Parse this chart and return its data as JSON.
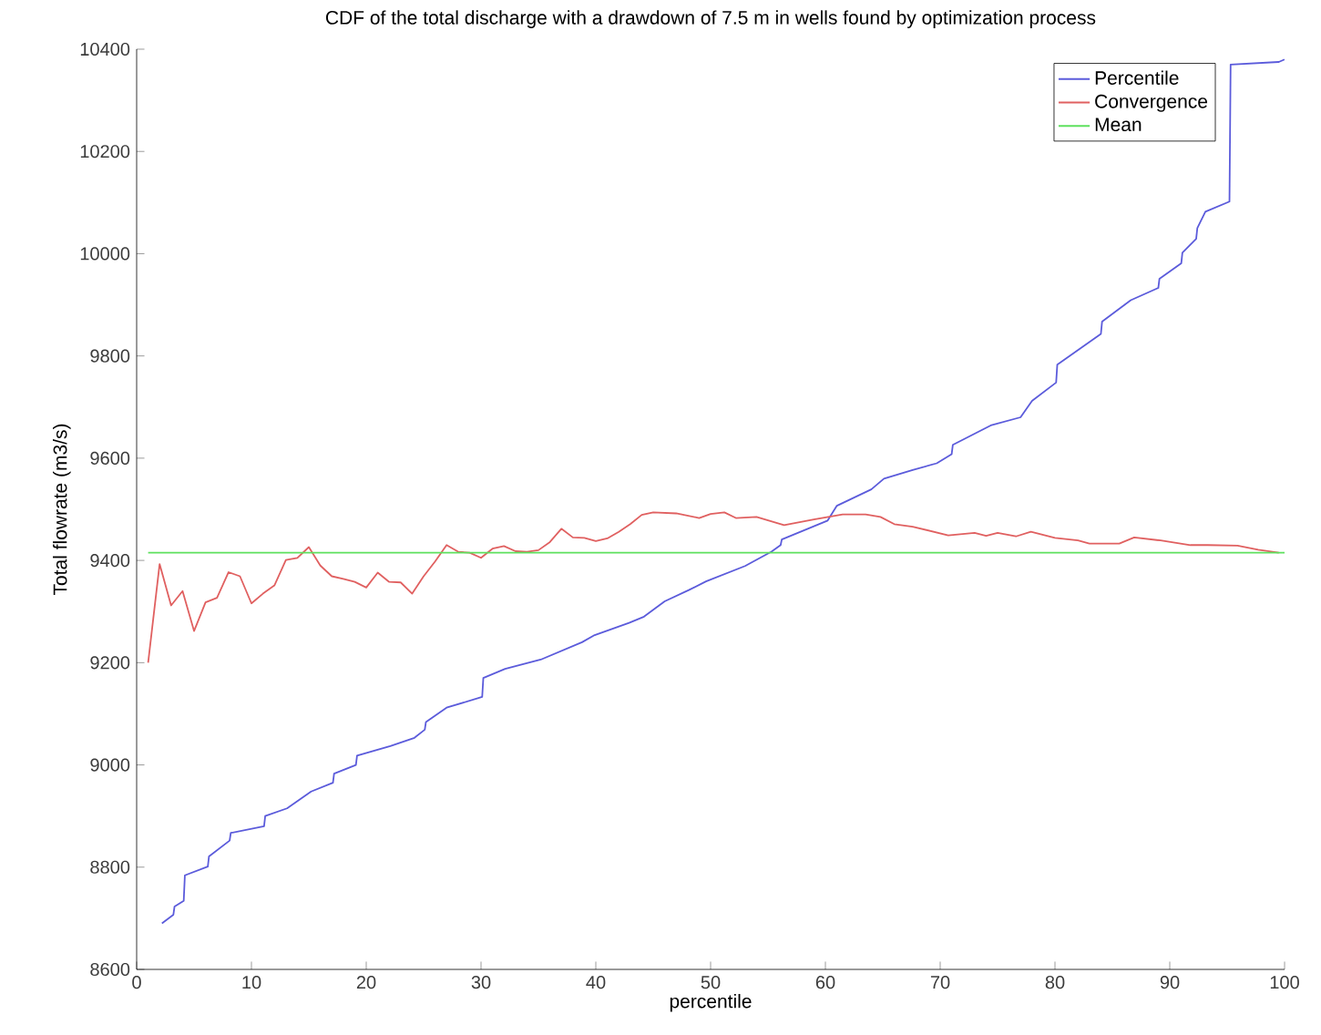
{
  "chart_data": {
    "type": "line",
    "title": "CDF of the total discharge with a drawdown of 7.5 m in wells found by optimization process",
    "xlabel": "percentile",
    "ylabel": "Total flowrate (m3/s)",
    "xlim": [
      0,
      100
    ],
    "ylim": [
      8600,
      10400
    ],
    "xticks": [
      0,
      10,
      20,
      30,
      40,
      50,
      60,
      70,
      80,
      90,
      100
    ],
    "yticks": [
      8600,
      8800,
      9000,
      9200,
      9400,
      9600,
      9800,
      10000,
      10200,
      10400
    ],
    "legend": "top right",
    "series": [
      {
        "name": "Percentile",
        "color": "#5b5bdb",
        "x": [
          2.2,
          3.2,
          3.3,
          4.1,
          4.2,
          6.2,
          6.3,
          8.1,
          8.2,
          11.1,
          11.2,
          13.1,
          15.2,
          17.1,
          17.2,
          19.1,
          19.2,
          22.1,
          24.2,
          25.1,
          25.2,
          27.0,
          30.1,
          30.2,
          32.1,
          35.2,
          38.8,
          39.9,
          42.9,
          44.2,
          46.0,
          48.1,
          49.6,
          53.0,
          55.3,
          56.1,
          56.2,
          60.2,
          61.0,
          64.0,
          65.1,
          67.6,
          69.7,
          71.0,
          71.1,
          74.4,
          77.0,
          78.0,
          80.1,
          80.2,
          84.0,
          84.1,
          86.6,
          89.0,
          89.1,
          91.0,
          91.1,
          92.3,
          92.4,
          93.1,
          95.2,
          95.3,
          99.5,
          100
        ],
        "values": [
          8690,
          8707,
          8723,
          8734,
          8784,
          8801,
          8821,
          8852,
          8867,
          8880,
          8900,
          8915,
          8948,
          8965,
          8983,
          9000,
          9018,
          9037,
          9053,
          9069,
          9084,
          9112,
          9133,
          9170,
          9188,
          9206,
          9240,
          9254,
          9278,
          9290,
          9320,
          9342,
          9359,
          9389,
          9417,
          9430,
          9441,
          9478,
          9507,
          9539,
          9560,
          9577,
          9590,
          9608,
          9626,
          9664,
          9680,
          9712,
          9748,
          9783,
          9843,
          9867,
          9909,
          9933,
          9951,
          9981,
          10002,
          10029,
          10050,
          10082,
          10102,
          10370,
          10375,
          10380
        ]
      },
      {
        "name": "Convergence",
        "color": "#e06060",
        "x": [
          1,
          2,
          3,
          4,
          5,
          6,
          7,
          8,
          9,
          10,
          11,
          12,
          13,
          14,
          15,
          16,
          17,
          18,
          19,
          20,
          21,
          22,
          23,
          24,
          25,
          26,
          27,
          28,
          29,
          30,
          31,
          32,
          33,
          34,
          35,
          36,
          37,
          38,
          39,
          40,
          41,
          42,
          43,
          44,
          45,
          47,
          49,
          50,
          51.2,
          52.2,
          54,
          56.4,
          59,
          61.5,
          63.5,
          64.8,
          66,
          67.6,
          70.7,
          73,
          74,
          75,
          76.6,
          77.9,
          80,
          82,
          83,
          85.6,
          86.9,
          89.2,
          91.8,
          93.3,
          95.9,
          97.7,
          99.5
        ],
        "values": [
          9200,
          9393,
          9312,
          9340,
          9262,
          9318,
          9327,
          9377,
          9369,
          9316,
          9335,
          9351,
          9401,
          9405,
          9426,
          9390,
          9369,
          9364,
          9358,
          9347,
          9376,
          9358,
          9357,
          9335,
          9369,
          9398,
          9430,
          9417,
          9415,
          9405,
          9423,
          9428,
          9418,
          9417,
          9420,
          9436,
          9462,
          9445,
          9444,
          9438,
          9443,
          9456,
          9471,
          9489,
          9494,
          9492,
          9483,
          9491,
          9494,
          9483,
          9485,
          9469,
          9480,
          9490,
          9490,
          9485,
          9471,
          9466,
          9449,
          9454,
          9448,
          9454,
          9447,
          9456,
          9444,
          9439,
          9433,
          9433,
          9445,
          9439,
          9430,
          9430,
          9429,
          9421,
          9415
        ]
      },
      {
        "name": "Mean",
        "color": "#5ee05e",
        "x": [
          1,
          100
        ],
        "values": [
          9415,
          9415
        ]
      }
    ]
  }
}
